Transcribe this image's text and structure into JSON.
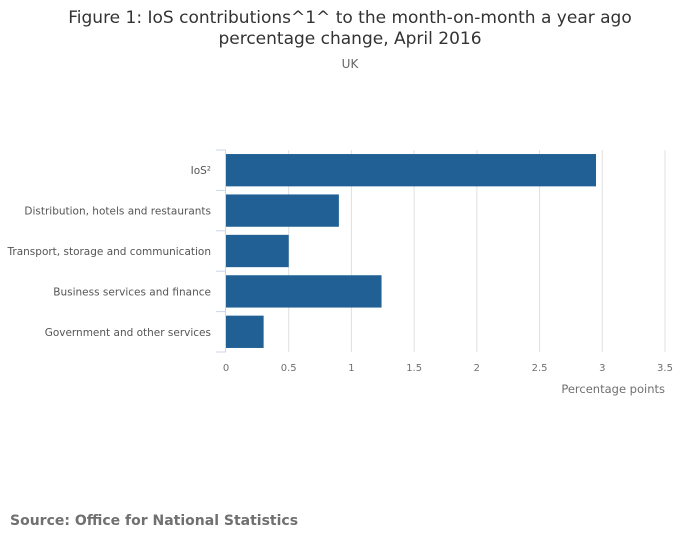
{
  "chart_data": {
    "type": "bar",
    "orientation": "horizontal",
    "title_lines": [
      "Figure 1: IoS contributions^1^ to the month-on-month a year ago",
      "percentage change, April 2016"
    ],
    "subtitle": "UK",
    "categories": [
      "IoS²",
      "Distribution, hotels and restaurants",
      "Transport, storage and communication",
      "Business services and finance",
      "Government and other services"
    ],
    "values": [
      2.95,
      0.9,
      0.5,
      1.24,
      0.3
    ],
    "xlabel": "Percentage points",
    "xlim": [
      0,
      3.5
    ],
    "xticks": [
      "0",
      "0.5",
      "1",
      "1.5",
      "2",
      "2.5",
      "3",
      "3.5"
    ],
    "grid": true,
    "bar_color": "#206095"
  },
  "source": "Source: Office for National Statistics"
}
